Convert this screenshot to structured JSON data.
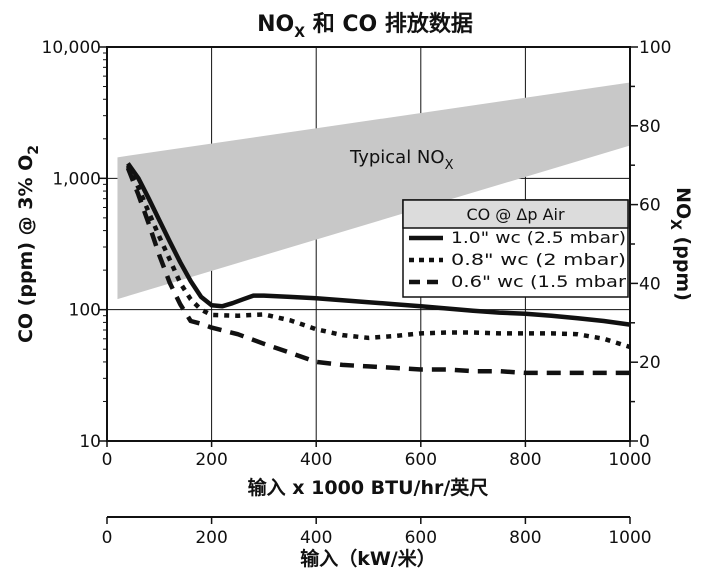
{
  "chart_data": {
    "type": "line",
    "title": {
      "main": "NO",
      "sub": "X",
      "rest": " 和 CO 排放数据"
    },
    "xlabel": "输入 x 1000 BTU/hr/英尺",
    "xlabel2": "输入（kW/米）",
    "ylabel_left": {
      "main": "CO (ppm) @ 3% O",
      "sub": "2"
    },
    "ylabel_right": {
      "main": "NO",
      "sub": "X",
      "rest": " (ppm)"
    },
    "xlim": [
      0,
      1000
    ],
    "ylim_left": [
      10,
      10000
    ],
    "ylim_right": [
      0,
      100
    ],
    "y_scale_left": "log",
    "grid": true,
    "x_ticks": [
      0,
      200,
      400,
      600,
      800,
      1000
    ],
    "x_tick_labels": [
      "0",
      "200",
      "400",
      "600",
      "800",
      "1000"
    ],
    "x2_ticks": [
      0,
      200,
      400,
      600,
      800,
      1000
    ],
    "x2_tick_labels": [
      "0",
      "200",
      "400",
      "600",
      "800",
      "1000"
    ],
    "y_left_ticks": [
      10,
      100,
      1000,
      10000
    ],
    "y_left_tick_labels": [
      "10",
      "100",
      "1,000",
      "10,000"
    ],
    "y_right_ticks": [
      0,
      20,
      40,
      60,
      80,
      100
    ],
    "y_right_tick_labels": [
      "0",
      "20",
      "40",
      "60",
      "80",
      "100"
    ],
    "band": {
      "label": {
        "main": "Typical NO",
        "sub": "X"
      },
      "x": [
        20,
        1000
      ],
      "lower": [
        36,
        75
      ],
      "upper": [
        72,
        91
      ],
      "color": "#c8c8c8"
    },
    "legend": {
      "title": "CO @ Δp Air",
      "position": "right"
    },
    "series": [
      {
        "name": "1.0\" wc (2.5 mbar)",
        "style": "solid",
        "x": [
          40,
          60,
          80,
          100,
          120,
          140,
          160,
          180,
          200,
          220,
          240,
          260,
          280,
          300,
          350,
          400,
          450,
          500,
          550,
          600,
          650,
          700,
          750,
          800,
          850,
          900,
          950,
          1000
        ],
        "y": [
          1300,
          1000,
          700,
          480,
          330,
          230,
          165,
          125,
          108,
          106,
          112,
          120,
          128,
          128,
          125,
          122,
          118,
          114,
          110,
          106,
          102,
          98,
          95,
          93,
          90,
          86,
          82,
          77
        ]
      },
      {
        "name": "0.8\" wc (2 mbar)",
        "style": "dotted",
        "x": [
          40,
          60,
          80,
          100,
          120,
          140,
          160,
          180,
          200,
          250,
          300,
          350,
          400,
          450,
          500,
          550,
          600,
          650,
          700,
          750,
          800,
          850,
          900,
          950,
          1000
        ],
        "y": [
          1250,
          850,
          550,
          360,
          240,
          160,
          120,
          100,
          91,
          90,
          92,
          83,
          71,
          64,
          61,
          63,
          66,
          67,
          67,
          66,
          66,
          66,
          65,
          60,
          52
        ]
      },
      {
        "name": "0.6\" wc (1.5 mbar",
        "style": "dashed",
        "x": [
          40,
          60,
          80,
          100,
          120,
          140,
          160,
          180,
          200,
          250,
          300,
          350,
          400,
          450,
          500,
          550,
          600,
          650,
          700,
          750,
          800,
          850,
          900,
          950,
          1000
        ],
        "y": [
          1200,
          750,
          450,
          260,
          160,
          110,
          82,
          78,
          73,
          65,
          55,
          47,
          40,
          38,
          37,
          36,
          35,
          35,
          34,
          34,
          33,
          33,
          33,
          33,
          33
        ]
      }
    ]
  }
}
